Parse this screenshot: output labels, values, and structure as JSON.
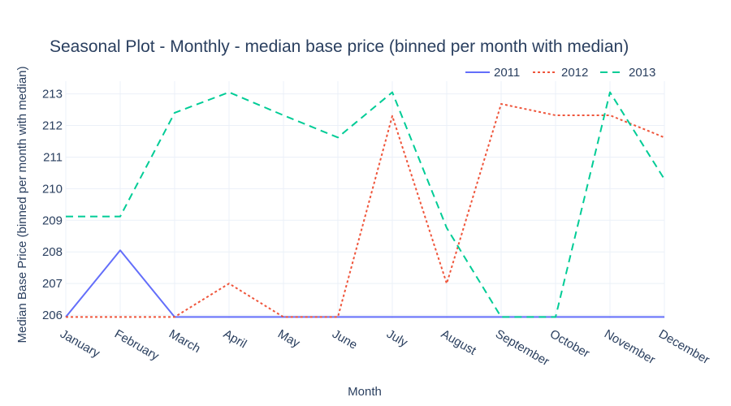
{
  "chart_data": {
    "type": "line",
    "title": "Seasonal Plot - Monthly - median base price (binned per month with median)",
    "xlabel": "Month",
    "ylabel": "Median Base Price (binned per month with median)",
    "categories": [
      "January",
      "February",
      "March",
      "April",
      "May",
      "June",
      "July",
      "August",
      "September",
      "October",
      "November",
      "December"
    ],
    "yticks": [
      206,
      207,
      208,
      209,
      210,
      211,
      212,
      213
    ],
    "ylim": [
      205.9,
      213.4
    ],
    "grid": true,
    "legend_position": "top-right",
    "series": [
      {
        "name": "2011",
        "color": "#636efa",
        "dash": "solid",
        "values": [
          205.94,
          208.05,
          205.94,
          205.94,
          205.94,
          205.94,
          205.94,
          205.94,
          205.94,
          205.94,
          205.94,
          205.94
        ]
      },
      {
        "name": "2012",
        "color": "#ef553b",
        "dash": "dot",
        "values": [
          205.94,
          205.94,
          205.94,
          207.0,
          205.94,
          205.94,
          212.3,
          207.0,
          212.68,
          212.32,
          212.32,
          211.62
        ]
      },
      {
        "name": "2013",
        "color": "#00cc96",
        "dash": "dash",
        "values": [
          209.12,
          209.12,
          212.4,
          213.05,
          212.32,
          211.62,
          213.05,
          208.76,
          205.94,
          205.94,
          213.05,
          210.3
        ]
      }
    ]
  }
}
